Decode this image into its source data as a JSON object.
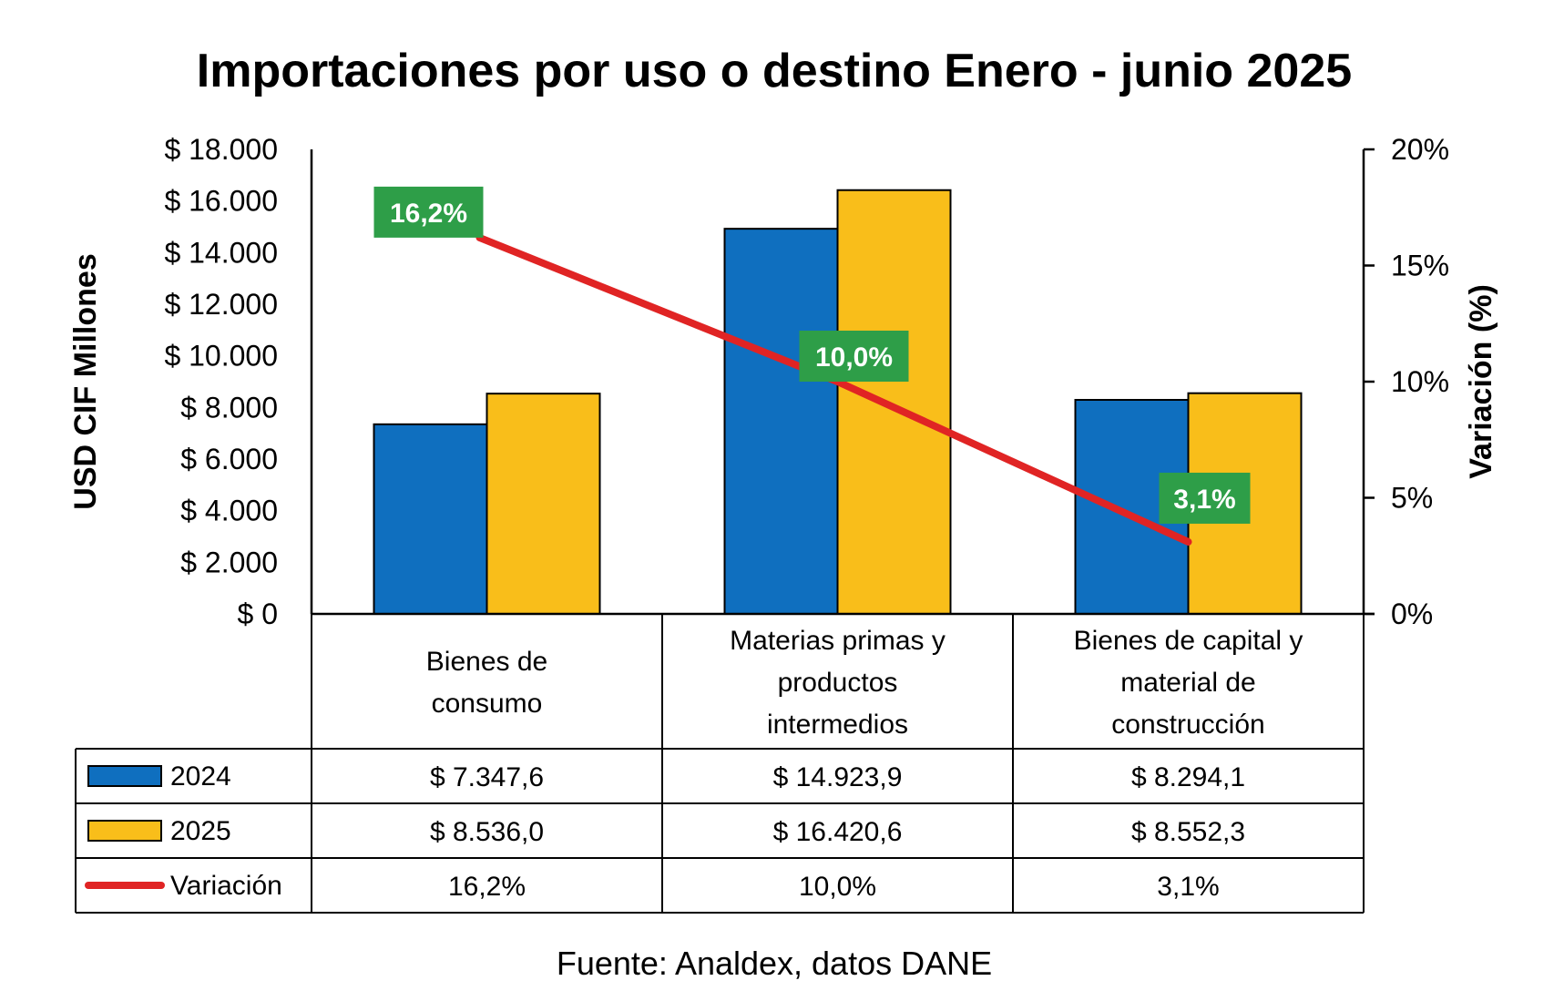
{
  "chart_data": {
    "type": "bar",
    "title": "Importaciones por uso o destino  Enero - junio 2025",
    "ylabel": "USD CIF Millones",
    "y2label": "Variación (%)",
    "ylim": [
      0,
      18000
    ],
    "y2lim": [
      0,
      20
    ],
    "yticks": [
      "$ 0",
      "$ 2.000",
      "$ 4.000",
      "$ 6.000",
      "$ 8.000",
      "$ 10.000",
      "$ 12.000",
      "$ 14.000",
      "$ 16.000",
      "$ 18.000"
    ],
    "ytick_values": [
      0,
      2000,
      4000,
      6000,
      8000,
      10000,
      12000,
      14000,
      16000,
      18000
    ],
    "y2ticks": [
      "0%",
      "5%",
      "10%",
      "15%",
      "20%"
    ],
    "y2tick_values": [
      0,
      5,
      10,
      15,
      20
    ],
    "categories": [
      [
        "Bienes de",
        "consumo"
      ],
      [
        "Materias primas y",
        "productos",
        "intermedios"
      ],
      [
        "Bienes de capital y",
        "material de",
        "construcción"
      ]
    ],
    "series": [
      {
        "name": "2024",
        "kind": "bar",
        "color": "#0F6FBF",
        "values": [
          7347.6,
          14923.9,
          8294.1
        ],
        "table_values": [
          "$ 7.347,6",
          "$ 14.923,9",
          "$ 8.294,1"
        ]
      },
      {
        "name": "2025",
        "kind": "bar",
        "color": "#F9BE1A",
        "values": [
          8536.0,
          16420.6,
          8552.3
        ],
        "table_values": [
          "$ 8.536,0",
          "$ 16.420,6",
          "$ 8.552,3"
        ]
      },
      {
        "name": "Variación",
        "kind": "line",
        "axis": "secondary",
        "color": "#E02424",
        "values": [
          16.2,
          10.0,
          3.1
        ],
        "table_values": [
          "16,2%",
          "10,0%",
          "3,1%"
        ],
        "data_labels": [
          "16,2%",
          "10,0%",
          "3,1%"
        ],
        "label_color": "#2E9E48"
      }
    ],
    "source": "Fuente: Analdex, datos DANE"
  }
}
